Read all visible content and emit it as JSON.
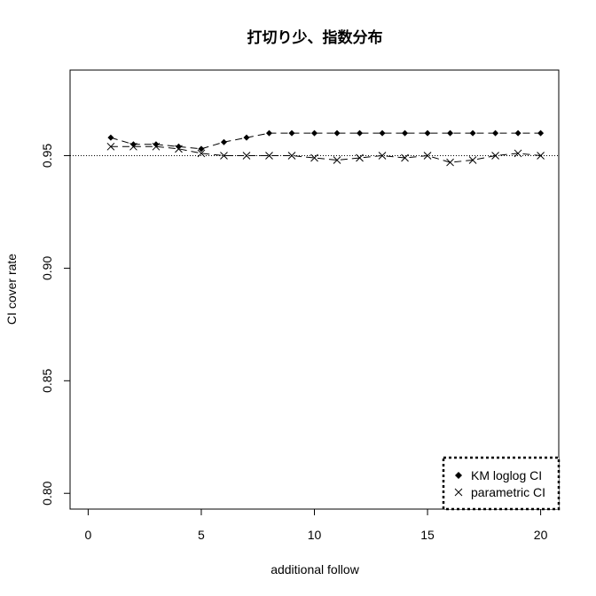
{
  "chart_data": {
    "type": "line",
    "title": "打切り少、指数分布",
    "xlabel": "additional follow",
    "ylabel": "CI cover rate",
    "xlim": [
      -0.8,
      20.8
    ],
    "ylim": [
      0.793,
      0.988
    ],
    "xticks": [
      0,
      5,
      10,
      15,
      20
    ],
    "xtick_labels": [
      "0",
      "5",
      "10",
      "15",
      "20"
    ],
    "yticks": [
      0.8,
      0.85,
      0.9,
      0.95
    ],
    "ytick_labels": [
      "0.80",
      "0.85",
      "0.90",
      "0.95"
    ],
    "reference_line": {
      "y": 0.95,
      "style": "dotted"
    },
    "grid": false,
    "legend_position": "bottom-right",
    "x": [
      1,
      2,
      3,
      4,
      5,
      6,
      7,
      8,
      9,
      10,
      11,
      12,
      13,
      14,
      15,
      16,
      17,
      18,
      19,
      20
    ],
    "series": [
      {
        "name": "KM loglog CI",
        "marker": "diamond",
        "line": "dashed",
        "color": "#000000",
        "values": [
          0.958,
          0.955,
          0.955,
          0.954,
          0.953,
          0.956,
          0.958,
          0.96,
          0.96,
          0.96,
          0.96,
          0.96,
          0.96,
          0.96,
          0.96,
          0.96,
          0.96,
          0.96,
          0.96,
          0.96
        ]
      },
      {
        "name": "parametric CI",
        "marker": "x",
        "line": "dashed",
        "color": "#000000",
        "values": [
          0.954,
          0.954,
          0.954,
          0.953,
          0.951,
          0.95,
          0.95,
          0.95,
          0.95,
          0.949,
          0.948,
          0.949,
          0.95,
          0.949,
          0.95,
          0.947,
          0.948,
          0.95,
          0.951,
          0.95
        ]
      }
    ]
  }
}
